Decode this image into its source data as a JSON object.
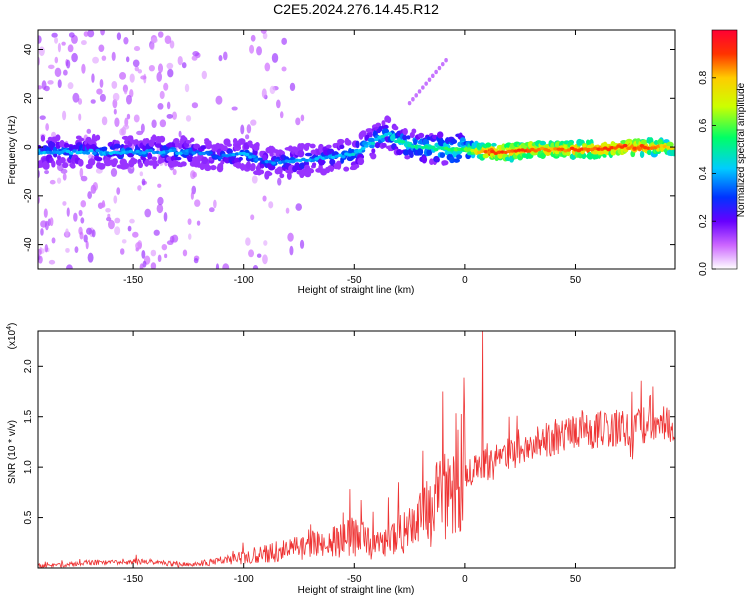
{
  "figure_title": "C2E5.2024.276.14.45.R12",
  "chart_data": [
    {
      "type": "heatmap",
      "xlabel": "Height of straight line (km)",
      "ylabel": "Frequency (Hz)",
      "xlim": [
        -193,
        95
      ],
      "ylim": [
        -50,
        48
      ],
      "xticks": [
        "-150",
        "-100",
        "-50",
        "0",
        "50"
      ],
      "xtick_values": [
        -150,
        -100,
        -50,
        0,
        50
      ],
      "yticks": [
        "40",
        "20",
        "0",
        "-20",
        "-40"
      ],
      "ytick_values": [
        40,
        20,
        0,
        -20,
        -40
      ],
      "colorbar": {
        "label": "Normalized spectral amplitude",
        "range": [
          0,
          1
        ],
        "ticks": [
          "0.0",
          "0.2",
          "0.4",
          "0.6",
          "0.8"
        ],
        "tick_values": [
          0.0,
          0.2,
          0.4,
          0.6,
          0.8
        ]
      },
      "ridge": {
        "x": [
          -193,
          -170,
          -150,
          -130,
          -120,
          -110,
          -100,
          -90,
          -80,
          -70,
          -60,
          -50,
          -40,
          -35,
          -30,
          -20,
          -10,
          0,
          10,
          20,
          30,
          40,
          50,
          60,
          70,
          80,
          90,
          95
        ],
        "frequency": [
          -2,
          -2,
          -2,
          -2,
          -2,
          -4,
          -3,
          -6,
          -6,
          -5,
          -4,
          -3,
          3,
          6,
          2,
          0,
          -1,
          -1,
          -2,
          -2,
          -1,
          -1,
          -1,
          -1,
          0,
          0,
          0,
          0
        ],
        "amplitude": [
          0.35,
          0.35,
          0.35,
          0.35,
          0.3,
          0.3,
          0.35,
          0.3,
          0.35,
          0.35,
          0.35,
          0.4,
          0.4,
          0.4,
          0.45,
          0.45,
          0.5,
          0.55,
          0.85,
          0.85,
          0.85,
          0.8,
          0.85,
          0.85,
          0.85,
          0.85,
          0.75,
          0.7
        ]
      }
    },
    {
      "type": "line",
      "xlabel": "Height of straight line (km)",
      "ylabel": "SNR (10 * v/v)",
      "scale_note": "(x10",
      "scale_exp": "4",
      "xlim": [
        -193,
        95
      ],
      "ylim": [
        0,
        2.35
      ],
      "xticks": [
        "-150",
        "-100",
        "-50",
        "0",
        "50"
      ],
      "xtick_values": [
        -150,
        -100,
        -50,
        0,
        50
      ],
      "yticks": [
        "0.5",
        "1.0",
        "1.5",
        "2.0"
      ],
      "ytick_values": [
        0.5,
        1.0,
        1.5,
        2.0
      ],
      "color": "#ee3333",
      "series": [
        {
          "x": [
            -193,
            -180,
            -170,
            -160,
            -150,
            -140,
            -130,
            -120,
            -110,
            -100,
            -90,
            -80,
            -70,
            -60,
            -50,
            -45,
            -40,
            -35,
            -30,
            -25,
            -20,
            -15,
            -10,
            -5,
            0,
            5,
            10,
            15,
            20,
            25,
            30,
            40,
            50,
            60,
            70,
            80,
            90,
            95
          ],
          "y": [
            0.02,
            0.03,
            0.05,
            0.05,
            0.06,
            0.06,
            0.03,
            0.04,
            0.07,
            0.1,
            0.14,
            0.17,
            0.2,
            0.24,
            0.3,
            0.25,
            0.2,
            0.22,
            0.3,
            0.35,
            0.45,
            0.55,
            0.65,
            0.75,
            0.9,
            0.95,
            1.0,
            1.05,
            1.1,
            1.15,
            1.2,
            1.28,
            1.33,
            1.35,
            1.37,
            1.38,
            1.4,
            1.4
          ]
        }
      ],
      "spikes": [
        {
          "x": 8,
          "y": 2.35
        },
        {
          "x": -10,
          "y": 1.75
        },
        {
          "x": -30,
          "y": 0.85
        },
        {
          "x": -55,
          "y": 0.55
        },
        {
          "x": 85,
          "y": 1.8
        },
        {
          "x": 20,
          "y": 1.5
        }
      ]
    }
  ]
}
